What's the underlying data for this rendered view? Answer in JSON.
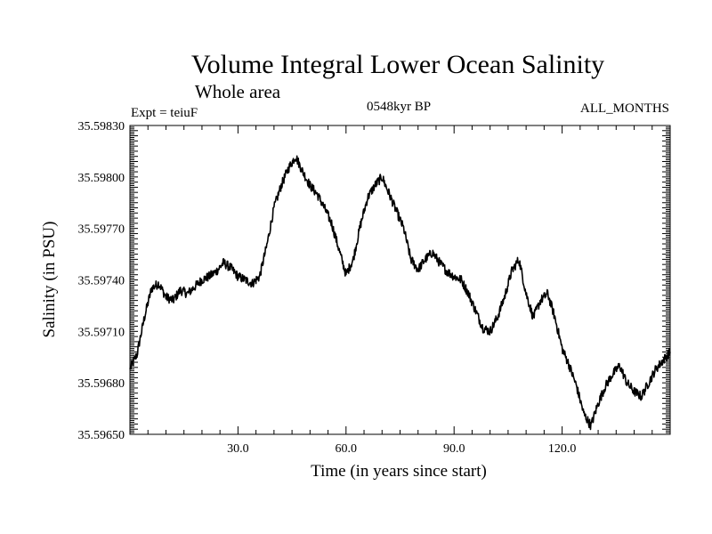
{
  "chart_data": {
    "type": "line",
    "title": "Volume Integral Lower Ocean Salinity",
    "subtitle": "Whole area",
    "experiment_label": "Expt = teiuF",
    "period_label": "0548kyr BP",
    "months_label": "ALL_MONTHS",
    "xlabel": "Time (in years since start)",
    "ylabel": "Salinity (in PSU)",
    "xlim": [
      0,
      150
    ],
    "ylim": [
      35.5965,
      35.5983
    ],
    "x_ticks": [
      30,
      60,
      90,
      120
    ],
    "x_tick_labels": [
      "30.0",
      "60.0",
      "90.0",
      "120.0"
    ],
    "y_ticks": [
      35.5965,
      35.5968,
      35.5971,
      35.5974,
      35.5977,
      35.598,
      35.5983
    ],
    "y_tick_labels": [
      "35.59650",
      "35.59680",
      "35.59710",
      "35.59740",
      "35.59770",
      "35.59800",
      "35.59830"
    ],
    "series": [
      {
        "name": "Salinity",
        "x": [
          0,
          2,
          4,
          6,
          8,
          10,
          12,
          14,
          16,
          18,
          20,
          22,
          24,
          26,
          28,
          30,
          32,
          34,
          36,
          38,
          40,
          42,
          44,
          46,
          48,
          50,
          52,
          54,
          56,
          58,
          60,
          62,
          64,
          66,
          68,
          70,
          72,
          74,
          76,
          78,
          80,
          82,
          84,
          86,
          88,
          90,
          92,
          94,
          96,
          98,
          100,
          102,
          104,
          106,
          108,
          110,
          112,
          114,
          116,
          118,
          120,
          122,
          124,
          126,
          128,
          130,
          132,
          134,
          136,
          138,
          140,
          142,
          144,
          146,
          148,
          150
        ],
        "values": [
          35.59688,
          35.59697,
          35.59718,
          35.59735,
          35.59738,
          35.5973,
          35.59728,
          35.59734,
          35.59732,
          35.59736,
          35.5974,
          35.59742,
          35.59745,
          35.5975,
          35.59747,
          35.59742,
          35.5974,
          35.59738,
          35.59742,
          35.5976,
          35.59782,
          35.59795,
          35.59805,
          35.59812,
          35.59803,
          35.59795,
          35.5979,
          35.59782,
          35.59773,
          35.59758,
          35.59743,
          35.59752,
          35.59772,
          35.59788,
          35.59795,
          35.598,
          35.5979,
          35.5978,
          35.5977,
          35.59752,
          35.59746,
          35.59752,
          35.59756,
          35.5975,
          35.59745,
          35.59742,
          35.5974,
          35.59732,
          35.59722,
          35.59712,
          35.5971,
          35.59718,
          35.5973,
          35.59745,
          35.59752,
          35.59732,
          35.59718,
          35.59728,
          35.59732,
          35.59718,
          35.597,
          35.5969,
          35.59678,
          35.59662,
          35.59655,
          35.59668,
          35.59678,
          35.59685,
          35.5969,
          35.5968,
          35.59675,
          35.59672,
          35.5968,
          35.59688,
          35.59693,
          35.59698
        ]
      }
    ]
  }
}
